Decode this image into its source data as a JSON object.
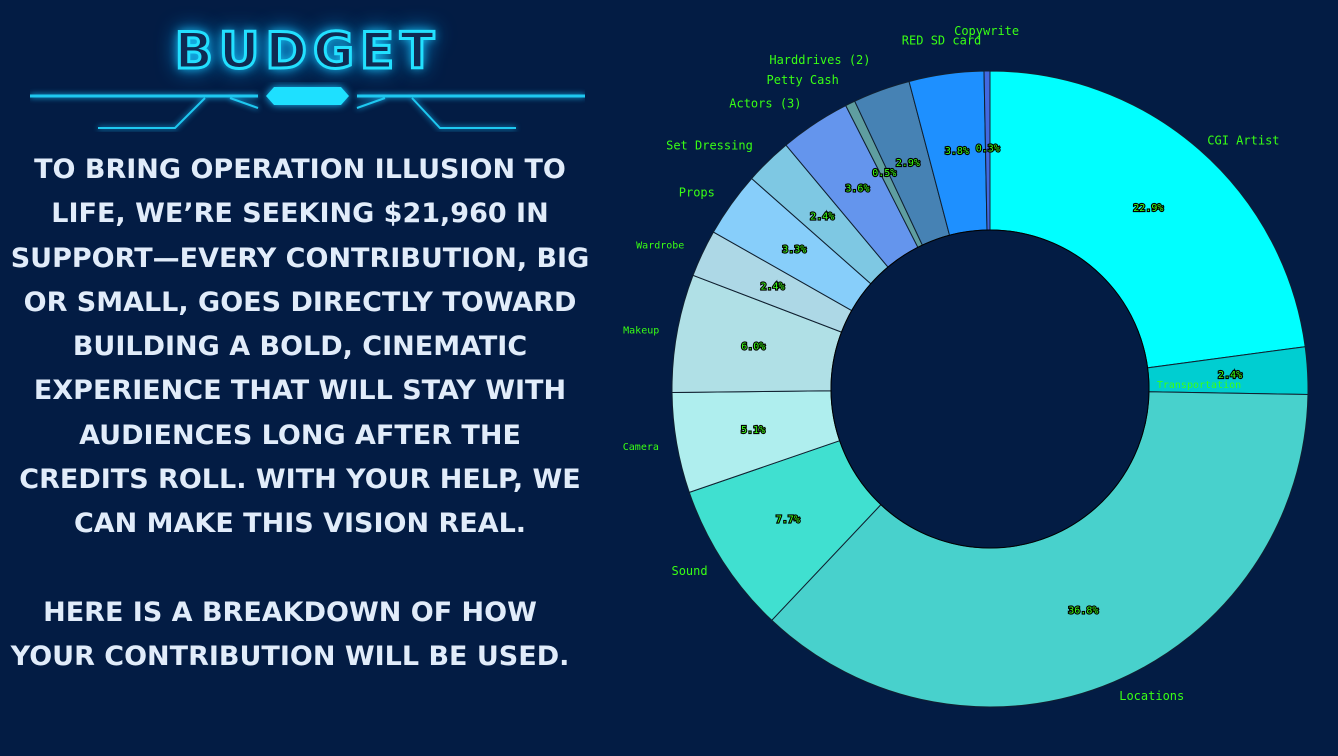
{
  "header": {
    "title": "BUDGET"
  },
  "intro": "TO BRING OPERATION ILLUSION TO LIFE, WE’RE SEEKING $21,960 IN SUPPORT—EVERY CONTRIBUTION, BIG OR SMALL, GOES DIRECTLY TOWARD BUILDING A BOLD, CINEMATIC EXPERIENCE THAT WILL STAY WITH AUDIENCES LONG AFTER THE CREDITS ROLL. WITH YOUR HELP, WE CAN MAKE THIS VISION REAL.",
  "breakdown_note": "HERE IS A BREAKDOWN OF HOW YOUR CONTRIBUTION WILL BE USED.",
  "colors": {
    "background": "#031c44",
    "neon": "#22e0ff",
    "label": "#39ff14",
    "body_text": "#e1ecfa"
  },
  "chart_data": {
    "type": "pie",
    "style": "donut",
    "start": "top, clockwise",
    "slices": [
      {
        "label": "CGI Artist",
        "value": 22.9,
        "pct_label": "22.9%",
        "color": "#00ffff"
      },
      {
        "label": "Transportation",
        "value": 2.4,
        "pct_label": "2.4%",
        "color": "#00ced1"
      },
      {
        "label": "Locations",
        "value": 36.8,
        "pct_label": "36.8%",
        "color": "#48d1cc"
      },
      {
        "label": "Sound",
        "value": 7.7,
        "pct_label": "7.7%",
        "color": "#40e0d0"
      },
      {
        "label": "Camera",
        "value": 5.1,
        "pct_label": "5.1%",
        "color": "#afeeee"
      },
      {
        "label": "Makeup",
        "value": 6.0,
        "pct_label": "6.0%",
        "color": "#b0e0e6"
      },
      {
        "label": "Wardrobe",
        "value": 2.4,
        "pct_label": "2.4%",
        "color": "#add8e6"
      },
      {
        "label": "Props",
        "value": 3.3,
        "pct_label": "3.3%",
        "color": "#87cefa"
      },
      {
        "label": "Set Dressing",
        "value": 2.4,
        "pct_label": "2.4%",
        "color": "#7ec8e3"
      },
      {
        "label": "Actors (3)",
        "value": 3.6,
        "pct_label": "3.6%",
        "color": "#6495ed"
      },
      {
        "label": "Petty Cash",
        "value": 0.5,
        "pct_label": "0.5%",
        "color": "#5f9ea0"
      },
      {
        "label": "Harddrives (2)",
        "value": 2.9,
        "pct_label": "2.9%",
        "color": "#4682b4"
      },
      {
        "label": "RED SD card",
        "value": 3.8,
        "pct_label": "3.8%",
        "color": "#1e90ff"
      },
      {
        "label": "Copywrite",
        "value": 0.3,
        "pct_label": "0.3%",
        "color": "#4169e1"
      }
    ]
  }
}
